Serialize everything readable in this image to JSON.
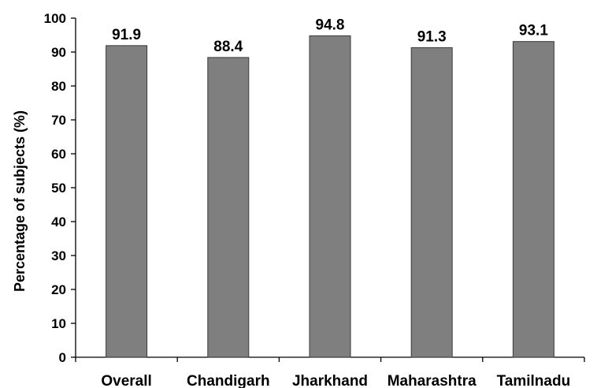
{
  "chart_data": {
    "type": "bar",
    "title": "",
    "xlabel": "",
    "ylabel": "Percentage of subjects (%)",
    "categories": [
      "Overall",
      "Chandigarh",
      "Jharkhand",
      "Maharashtra",
      "Tamilnadu"
    ],
    "values": [
      91.9,
      88.4,
      94.8,
      91.3,
      93.1
    ],
    "data_labels": [
      "91.9",
      "88.4",
      "94.8",
      "91.3",
      "93.1"
    ],
    "ylim": [
      0,
      100
    ],
    "yticks": [
      0,
      10,
      20,
      30,
      40,
      50,
      60,
      70,
      80,
      90,
      100
    ],
    "grid": false,
    "legend": "none",
    "colors": {
      "bar_fill": "#7f7f7f",
      "bar_stroke": "#3a3a3a",
      "axis": "#000000"
    }
  }
}
